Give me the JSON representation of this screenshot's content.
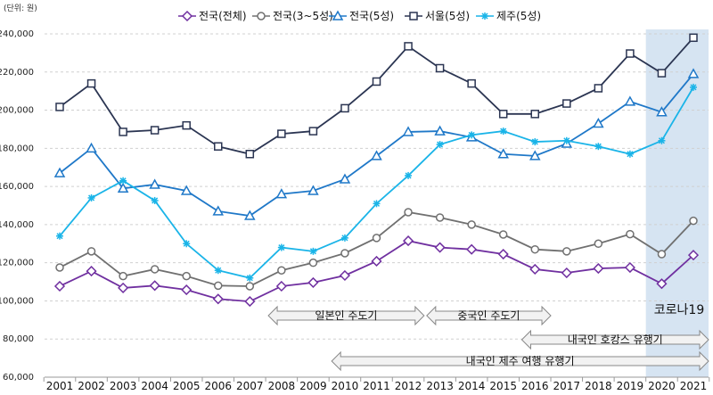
{
  "chart_data": {
    "type": "line",
    "unit_label": "(단위: 원)",
    "x": [
      2001,
      2002,
      2003,
      2004,
      2005,
      2006,
      2007,
      2008,
      2009,
      2010,
      2011,
      2012,
      2013,
      2014,
      2015,
      2016,
      2017,
      2018,
      2019,
      2020,
      2021
    ],
    "ylim": [
      60000,
      240000
    ],
    "yticks": [
      60000,
      80000,
      100000,
      120000,
      140000,
      160000,
      180000,
      200000,
      220000,
      240000
    ],
    "ytick_labels": [
      "60,000",
      "80,000",
      "100,000",
      "120,000",
      "140,000",
      "160,000",
      "180,000",
      "200,000",
      "220,000",
      "240,000"
    ],
    "grid": "horizontal dashed",
    "legend_position": "top-center",
    "series": [
      {
        "name": "전국(전체)",
        "color": "#7030a0",
        "marker": "diamond",
        "values": [
          107700,
          115600,
          106800,
          108000,
          105800,
          101000,
          99700,
          107700,
          109600,
          113300,
          120800,
          131500,
          128000,
          127000,
          124500,
          116600,
          114700,
          117000,
          117500,
          109000,
          124000
        ]
      },
      {
        "name": "전국(3~5성)",
        "color": "#707070",
        "marker": "circle",
        "values": [
          117500,
          126000,
          113000,
          116600,
          113000,
          108000,
          107700,
          116000,
          120000,
          125000,
          133000,
          146500,
          143700,
          140000,
          134800,
          127000,
          126000,
          130000,
          135000,
          124500,
          142000
        ]
      },
      {
        "name": "전국(5성)",
        "color": "#1f78c8",
        "marker": "triangle",
        "values": [
          167000,
          180000,
          159000,
          161000,
          157700,
          147000,
          144600,
          156000,
          157700,
          163800,
          176000,
          188600,
          189000,
          185800,
          177000,
          176000,
          182500,
          193000,
          204500,
          199000,
          219000
        ]
      },
      {
        "name": "서울(5성)",
        "color": "#2b3552",
        "marker": "square",
        "values": [
          201700,
          214000,
          188600,
          189500,
          192000,
          181000,
          177000,
          187600,
          189000,
          201000,
          215000,
          233500,
          222000,
          214000,
          198000,
          198000,
          203500,
          211500,
          229700,
          219400,
          238000
        ]
      },
      {
        "name": "제주(5성)",
        "color": "#1ab4e8",
        "marker": "star",
        "values": [
          134000,
          154000,
          163000,
          152600,
          130000,
          116000,
          112000,
          128000,
          126000,
          133000,
          151000,
          165700,
          182000,
          187000,
          189000,
          183400,
          184000,
          181000,
          177000,
          184000,
          212000
        ]
      }
    ],
    "highlight": {
      "label": "코로나19",
      "from": 2020,
      "to": 2021,
      "color": "#d6e4f2"
    },
    "annotations": [
      {
        "label": "일본인 주도기",
        "from": 2008,
        "to": 2012,
        "row": 1
      },
      {
        "label": "중국인 주도기",
        "from": 2013,
        "to": 2016,
        "row": 1
      },
      {
        "label": "내국인 호캉스 유행기",
        "from": 2016,
        "to": 2021,
        "row": 2
      },
      {
        "label": "내국인 제주 여행 유행기",
        "from": 2010,
        "to": 2021,
        "row": 3
      }
    ]
  }
}
